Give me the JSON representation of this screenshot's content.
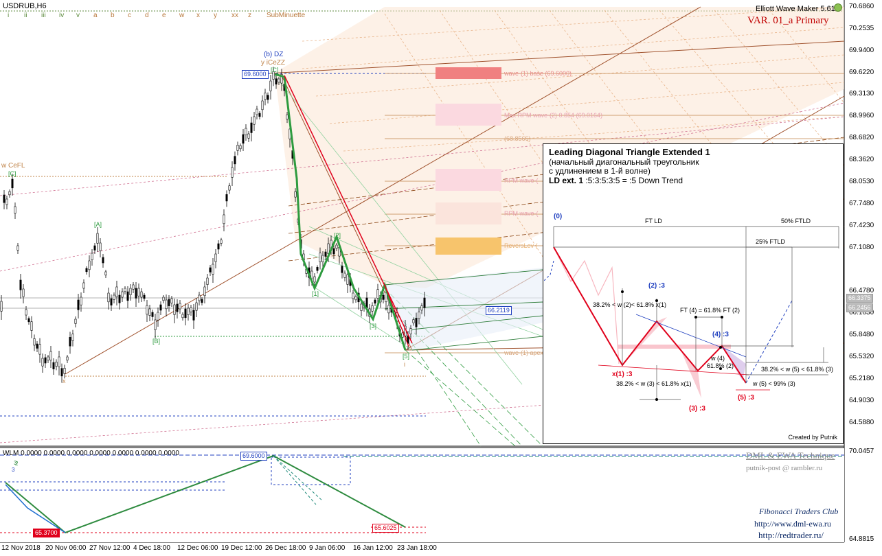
{
  "symbol": "USDRUB,H6",
  "indicator_version": "Elliott Wave Maker 5.61.5",
  "variant_label": "VAR. 01_a Primary",
  "degree_labels": [
    "i",
    "ii",
    "iii",
    "iv",
    "v",
    "a",
    "b",
    "c",
    "d",
    "e",
    "w",
    "x",
    "y",
    "xx",
    "z",
    "SubMinuette"
  ],
  "price_axis": [
    "70.6860",
    "70.2535",
    "69.9400",
    "69.6220",
    "69.3130",
    "68.9960",
    "68.6820",
    "68.3620",
    "68.0530",
    "67.7480",
    "67.4230",
    "67.1080",
    "66.4780",
    "66.1630",
    "65.8480",
    "65.5320",
    "65.2180",
    "64.9030",
    "64.5880"
  ],
  "price_current_labels": [
    "66.3375",
    "66.2456"
  ],
  "date_axis": [
    "12 Nov 2018",
    "20 Nov 06:00",
    "27 Nov 12:00",
    "4 Dec 18:00",
    "12 Dec 06:00",
    "19 Dec 12:00",
    "26 Dec 18:00",
    "9 Jan 06:00",
    "16 Jan 12:00",
    "23 Jan 18:00"
  ],
  "wave_labels": {
    "b_dz": "(b) DZ",
    "y_iceZZ": "y iCeZZ",
    "w_cefl": "w CeFL",
    "c_top": "[C]",
    "c_left": "[C]",
    "a_mid": "[A]",
    "b_low": "[B]",
    "x_low": "x",
    "one": "[1]",
    "two": "[2]",
    "three": "[3]",
    "five": "[5]",
    "i_low": "i"
  },
  "price_tags": {
    "top": "69.6000",
    "current": "66.2119"
  },
  "levels": {
    "base": "wave-(1) base (69.6000)",
    "max_rpm": "Max RPM wave-(2) 0.854 (69.0164)",
    "lvl3": "(68.8566)",
    "rpm1": "RPM wave-(",
    "rpm2": "RPM wave-(",
    "reverse": "ReversLev (",
    "apex": "wave-(1) apex"
  },
  "colors": {
    "bearish": "#e0001b",
    "wave_green": "#2e9b3f",
    "fib_orange": "#c0844a",
    "zone_red": "#f08080",
    "zone_orange": "#f7c46c",
    "blue": "#1f3fbf"
  },
  "subwindow": {
    "title": "WLM 0.0000 0.0000 0.0000 0.0000 0.0000 0.0000 0.0000",
    "left_value": "65.3700",
    "top_value": "69.6000",
    "right_value": "65.6025",
    "axis_top": "70.0457",
    "axis_bottom": "64.8815",
    "mini_labels": [
      "3",
      "2",
      "3"
    ]
  },
  "branding": {
    "line1": "DML & EWA Technique",
    "line2": "putnik-post @ rambler.ru",
    "line3": "Fibonacci   Traders   Club",
    "line4": "http://www.dml-ewa.ru",
    "line5": "http://redtrader.ru/"
  },
  "ld_box": {
    "title": "Leading Diagonal Triangle Extended 1",
    "ru1": "(начальный диагональный треугольник",
    "ru2": "с удлинением в 1-й волне)",
    "formula_bold": "LD ext. 1",
    "formula_rest": " :5:3:5:3:5 = :5 Down Trend",
    "label_0": "(0)",
    "label_1": "x(1) :3",
    "label_2": "(2) :3",
    "label_3": "(3) :3",
    "label_4": "(4) :3",
    "label_5": "(5) :3",
    "ft_ld": "FT LD",
    "ftld50": "50% FTLD",
    "ftld25": "25% FTLD",
    "rule_2": "38.2% < w (2)< 61.8% x(1)",
    "rule_3": "38.2% < w (3) < 61.8% x(1)",
    "rule_ft4": "FT (4) = 61.8% FT (2)",
    "rule_w4a": "w (4)",
    "rule_w4b": "61.8% (2)",
    "rule_w5": "w (5) < 99% (3)",
    "rule_5b": "38.2% < w (5) < 61.8% (3)",
    "credit": "Created by Putnik"
  }
}
